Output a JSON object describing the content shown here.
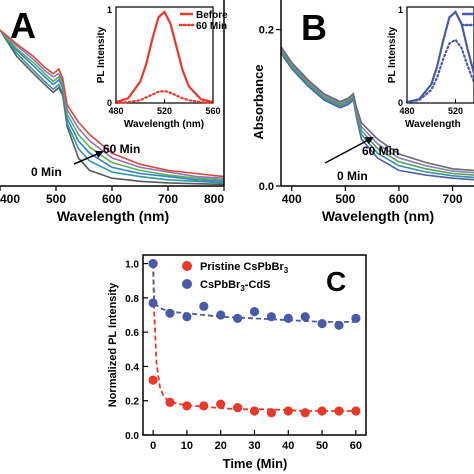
{
  "chart_data": [
    {
      "panel": "A",
      "type": "line",
      "xlabel": "Wavelength (nm)",
      "ylabel": "",
      "xlim": [
        400,
        800
      ],
      "xticks": [
        "400",
        "500",
        "600",
        "700",
        "800"
      ],
      "annotations": [
        "0 Min",
        "60 Min"
      ],
      "series": [
        {
          "x": [
            400,
            430,
            460,
            480,
            495,
            505,
            512,
            520,
            540,
            560,
            600,
            650,
            700,
            750,
            800
          ],
          "y": [
            1.0,
            0.83,
            0.72,
            0.65,
            0.6,
            0.63,
            0.58,
            0.38,
            0.18,
            0.1,
            0.05,
            0.03,
            0.02,
            0.015,
            0.01
          ]
        },
        {
          "x": [
            400,
            430,
            460,
            480,
            495,
            505,
            512,
            520,
            540,
            560,
            600,
            650,
            700,
            750,
            800
          ],
          "y": [
            1.0,
            0.85,
            0.74,
            0.67,
            0.62,
            0.65,
            0.6,
            0.4,
            0.24,
            0.16,
            0.09,
            0.06,
            0.04,
            0.03,
            0.02
          ]
        },
        {
          "x": [
            400,
            430,
            460,
            480,
            495,
            505,
            512,
            520,
            540,
            560,
            600,
            650,
            700,
            750,
            800
          ],
          "y": [
            1.0,
            0.87,
            0.77,
            0.7,
            0.65,
            0.68,
            0.63,
            0.43,
            0.29,
            0.21,
            0.12,
            0.08,
            0.06,
            0.04,
            0.03
          ]
        },
        {
          "x": [
            400,
            430,
            460,
            480,
            495,
            505,
            512,
            520,
            540,
            560,
            600,
            650,
            700,
            750,
            800
          ],
          "y": [
            1.0,
            0.88,
            0.79,
            0.72,
            0.67,
            0.7,
            0.65,
            0.46,
            0.33,
            0.25,
            0.15,
            0.1,
            0.07,
            0.05,
            0.04
          ]
        },
        {
          "x": [
            400,
            430,
            460,
            480,
            495,
            505,
            512,
            520,
            540,
            560,
            600,
            650,
            700,
            750,
            800
          ],
          "y": [
            1.0,
            0.9,
            0.81,
            0.74,
            0.7,
            0.72,
            0.67,
            0.49,
            0.37,
            0.29,
            0.18,
            0.12,
            0.09,
            0.06,
            0.05
          ]
        },
        {
          "x": [
            400,
            430,
            460,
            480,
            495,
            505,
            512,
            520,
            540,
            560,
            600,
            650,
            700,
            750,
            800
          ],
          "y": [
            1.0,
            0.91,
            0.83,
            0.76,
            0.72,
            0.75,
            0.69,
            0.52,
            0.41,
            0.33,
            0.21,
            0.14,
            0.1,
            0.08,
            0.06
          ]
        }
      ],
      "inset": {
        "xlabel": "Wavelength (nm)",
        "ylabel": "PL Intensity",
        "xlim": [
          480,
          560
        ],
        "ylim": [
          0,
          1
        ],
        "xticks": [
          "480",
          "520",
          "560"
        ],
        "yticks": [
          "0",
          "1"
        ],
        "series": [
          {
            "name": "Before",
            "style": "solid",
            "color": "#e8382a",
            "x": [
              480,
              490,
              500,
              505,
              510,
              515,
              520,
              525,
              530,
              535,
              540,
              550,
              560
            ],
            "y": [
              0.01,
              0.05,
              0.23,
              0.42,
              0.69,
              0.92,
              0.98,
              0.85,
              0.6,
              0.35,
              0.18,
              0.04,
              0.01
            ]
          },
          {
            "name": "60 Min",
            "style": "dotted",
            "color": "#e8382a",
            "x": [
              480,
              490,
              500,
              505,
              510,
              515,
              520,
              525,
              530,
              535,
              540,
              550,
              560
            ],
            "y": [
              0.0,
              0.01,
              0.03,
              0.06,
              0.09,
              0.12,
              0.13,
              0.11,
              0.08,
              0.05,
              0.03,
              0.01,
              0.0
            ]
          }
        ]
      }
    },
    {
      "panel": "B",
      "type": "line",
      "xlabel": "Wavelength (nm)",
      "ylabel": "Absorbance",
      "xlim": [
        380,
        740
      ],
      "ylim": [
        0,
        0.22
      ],
      "xticks": [
        "400",
        "500",
        "600",
        "700"
      ],
      "yticks": [
        "0.0",
        "0.2"
      ],
      "annotations": [
        "0 Min",
        "60 Min"
      ],
      "series": [
        {
          "x": [
            380,
            400,
            430,
            460,
            490,
            505,
            515,
            520,
            530,
            560,
            600,
            650,
            700,
            740
          ],
          "y": [
            0.17,
            0.15,
            0.128,
            0.11,
            0.1,
            0.104,
            0.11,
            0.09,
            0.06,
            0.036,
            0.02,
            0.014,
            0.01,
            0.008
          ]
        },
        {
          "x": [
            380,
            400,
            430,
            460,
            490,
            505,
            515,
            520,
            530,
            560,
            600,
            650,
            700,
            740
          ],
          "y": [
            0.172,
            0.152,
            0.13,
            0.112,
            0.102,
            0.106,
            0.112,
            0.093,
            0.066,
            0.042,
            0.026,
            0.018,
            0.013,
            0.011
          ]
        },
        {
          "x": [
            380,
            400,
            430,
            460,
            490,
            505,
            515,
            520,
            530,
            560,
            600,
            650,
            700,
            740
          ],
          "y": [
            0.174,
            0.154,
            0.132,
            0.114,
            0.104,
            0.108,
            0.114,
            0.096,
            0.071,
            0.048,
            0.031,
            0.022,
            0.016,
            0.014
          ]
        },
        {
          "x": [
            380,
            400,
            430,
            460,
            490,
            505,
            515,
            520,
            530,
            560,
            600,
            650,
            700,
            740
          ],
          "y": [
            0.176,
            0.156,
            0.134,
            0.116,
            0.106,
            0.11,
            0.116,
            0.099,
            0.076,
            0.054,
            0.036,
            0.026,
            0.019,
            0.017
          ]
        },
        {
          "x": [
            380,
            400,
            430,
            460,
            490,
            505,
            515,
            520,
            530,
            560,
            600,
            650,
            700,
            740
          ],
          "y": [
            0.178,
            0.158,
            0.136,
            0.118,
            0.108,
            0.112,
            0.118,
            0.102,
            0.081,
            0.06,
            0.041,
            0.03,
            0.022,
            0.02
          ]
        }
      ],
      "inset": {
        "xlabel": "Wavelength",
        "ylabel": "PL Intensity",
        "xlim": [
          480,
          560
        ],
        "ylim": [
          0,
          1
        ],
        "xticks": [
          "480",
          "520"
        ],
        "yticks": [
          "0",
          "1"
        ],
        "series": [
          {
            "style": "solid",
            "color": "#4a5aa8",
            "x": [
              480,
              490,
              500,
              505,
              510,
              515,
              520,
              525,
              530,
              535,
              540,
              550,
              560
            ],
            "y": [
              0.01,
              0.04,
              0.2,
              0.4,
              0.68,
              0.92,
              0.98,
              0.85,
              0.58,
              0.33,
              0.16,
              0.04,
              0.01
            ]
          },
          {
            "style": "dotted",
            "color": "#4a5aa8",
            "x": [
              480,
              490,
              500,
              505,
              510,
              515,
              520,
              525,
              530,
              535,
              540,
              550,
              560
            ],
            "y": [
              0.01,
              0.03,
              0.14,
              0.28,
              0.48,
              0.64,
              0.68,
              0.59,
              0.4,
              0.23,
              0.11,
              0.03,
              0.01
            ]
          }
        ]
      }
    },
    {
      "panel": "C",
      "type": "scatter",
      "xlabel": "Time (Min)",
      "ylabel": "Normalized PL Intensity",
      "xlim": [
        -3,
        63
      ],
      "ylim": [
        0,
        1.05
      ],
      "xticks": [
        "0",
        "10",
        "20",
        "30",
        "40",
        "50",
        "60"
      ],
      "yticks": [
        "0.0",
        "0.2",
        "0.4",
        "0.6",
        "0.8",
        "1.0"
      ],
      "series": [
        {
          "name": "Pristine CsPbBr",
          "name_sub": "3",
          "color": "#e8382a",
          "x": [
            0,
            0,
            5,
            10,
            15,
            20,
            25,
            30,
            35,
            40,
            45,
            50,
            55,
            60
          ],
          "y": [
            1.0,
            0.32,
            0.19,
            0.17,
            0.17,
            0.18,
            0.16,
            0.14,
            0.13,
            0.14,
            0.13,
            0.14,
            0.14,
            0.14
          ],
          "fit_x": [
            0.3,
            1,
            2,
            3,
            5,
            8,
            12,
            18,
            25,
            35,
            45,
            60
          ],
          "fit_y": [
            0.72,
            0.42,
            0.28,
            0.23,
            0.19,
            0.18,
            0.17,
            0.16,
            0.15,
            0.15,
            0.14,
            0.14
          ]
        },
        {
          "name": "CsPbBr",
          "name_sub": "3",
          "name_tail": "-CdS",
          "color": "#4a5aa8",
          "x": [
            0,
            0,
            5,
            10,
            15,
            20,
            25,
            30,
            35,
            40,
            45,
            50,
            55,
            60
          ],
          "y": [
            1.0,
            0.77,
            0.71,
            0.69,
            0.75,
            0.7,
            0.68,
            0.72,
            0.69,
            0.68,
            0.69,
            0.65,
            0.64,
            0.68
          ],
          "fit_x": [
            0.3,
            2,
            5,
            10,
            20,
            30,
            40,
            50,
            60
          ],
          "fit_y": [
            0.77,
            0.74,
            0.72,
            0.71,
            0.69,
            0.68,
            0.67,
            0.66,
            0.66
          ]
        }
      ]
    }
  ],
  "panel_labels": {
    "a": "A",
    "b": "B",
    "c": "C"
  },
  "colors": {
    "red": "#e8382a",
    "blue": "#4a5aa8",
    "grey": "#555555",
    "arrow": "#000000"
  }
}
